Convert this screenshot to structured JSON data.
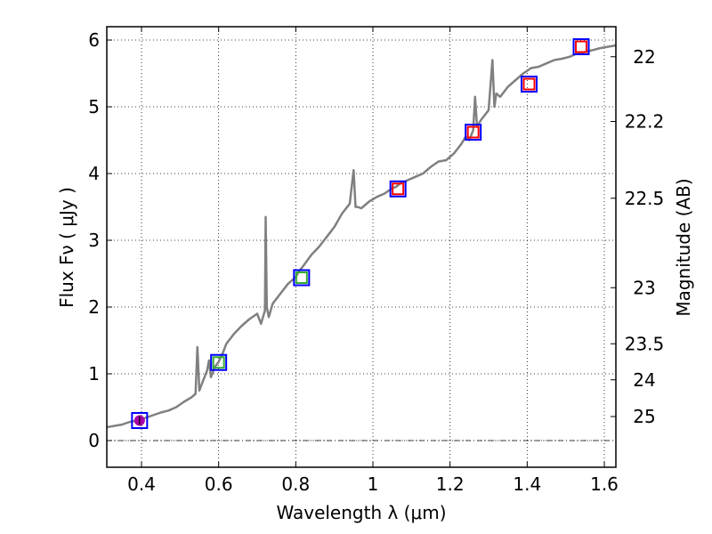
{
  "chart_data": {
    "type": "scatter",
    "xlabel": "Wavelength  λ (μm)",
    "ylabel": "Flux  Fν  ( μJy )",
    "ylabel_right": "Magnitude (AB)",
    "xlim": [
      0.31,
      1.63
    ],
    "ylim": [
      -0.4,
      6.2
    ],
    "grid": true,
    "x_ticks": [
      0.4,
      0.6,
      0.8,
      1.0,
      1.2,
      1.4,
      1.6
    ],
    "x_tick_labels": [
      "0.4",
      "0.6",
      "0.8",
      "1",
      "1.2",
      "1.4",
      "1.6"
    ],
    "y_ticks": [
      0,
      1,
      2,
      3,
      4,
      5,
      6
    ],
    "y_tick_labels": [
      "0",
      "1",
      "2",
      "3",
      "4",
      "5",
      "6"
    ],
    "right_ticks": [
      {
        "label": "22",
        "flux": 5.75
      },
      {
        "label": "22.2",
        "flux": 4.78
      },
      {
        "label": "22.5",
        "flux": 3.63
      },
      {
        "label": "23",
        "flux": 2.29
      },
      {
        "label": "23.5",
        "flux": 1.45
      },
      {
        "label": "24",
        "flux": 0.91
      },
      {
        "label": "25",
        "flux": 0.36
      }
    ],
    "series": [
      {
        "name": "SED model",
        "kind": "line",
        "color": "#808080",
        "x": [
          0.31,
          0.33,
          0.35,
          0.37,
          0.39,
          0.41,
          0.43,
          0.45,
          0.47,
          0.49,
          0.51,
          0.53,
          0.54,
          0.545,
          0.55,
          0.56,
          0.57,
          0.575,
          0.58,
          0.59,
          0.6,
          0.61,
          0.62,
          0.64,
          0.66,
          0.68,
          0.7,
          0.71,
          0.72,
          0.722,
          0.725,
          0.73,
          0.74,
          0.76,
          0.78,
          0.8,
          0.81,
          0.82,
          0.84,
          0.86,
          0.88,
          0.9,
          0.92,
          0.94,
          0.95,
          0.955,
          0.96,
          0.97,
          0.99,
          1.01,
          1.03,
          1.05,
          1.06,
          1.07,
          1.09,
          1.11,
          1.13,
          1.15,
          1.17,
          1.19,
          1.21,
          1.23,
          1.24,
          1.25,
          1.26,
          1.265,
          1.27,
          1.28,
          1.3,
          1.31,
          1.315,
          1.32,
          1.33,
          1.35,
          1.37,
          1.39,
          1.41,
          1.43,
          1.45,
          1.47,
          1.49,
          1.51,
          1.53,
          1.55,
          1.57,
          1.59,
          1.61,
          1.63
        ],
        "y": [
          0.2,
          0.22,
          0.24,
          0.28,
          0.3,
          0.34,
          0.38,
          0.42,
          0.45,
          0.5,
          0.58,
          0.65,
          0.7,
          1.4,
          0.75,
          0.9,
          1.05,
          1.2,
          0.95,
          1.1,
          1.18,
          1.3,
          1.45,
          1.6,
          1.72,
          1.82,
          1.9,
          1.75,
          1.95,
          3.35,
          2.0,
          1.85,
          2.05,
          2.2,
          2.35,
          2.45,
          2.55,
          2.62,
          2.78,
          2.9,
          3.05,
          3.2,
          3.4,
          3.55,
          4.05,
          3.5,
          3.5,
          3.48,
          3.58,
          3.65,
          3.7,
          3.78,
          3.8,
          3.85,
          3.9,
          3.95,
          4.0,
          4.1,
          4.18,
          4.2,
          4.3,
          4.45,
          4.55,
          4.5,
          4.65,
          5.15,
          4.7,
          4.8,
          4.95,
          5.7,
          5.0,
          5.2,
          5.15,
          5.3,
          5.4,
          5.5,
          5.58,
          5.6,
          5.65,
          5.7,
          5.72,
          5.75,
          5.8,
          5.82,
          5.85,
          5.88,
          5.9,
          5.92
        ]
      },
      {
        "name": "Observed (blue squares)",
        "kind": "square",
        "color": "#0000ff",
        "x": [
          0.395,
          0.6,
          0.815,
          1.065,
          1.26,
          1.405,
          1.54
        ],
        "y": [
          0.3,
          1.17,
          2.44,
          3.77,
          4.62,
          5.34,
          5.9
        ]
      },
      {
        "name": "Model photometry (red squares)",
        "kind": "square",
        "color": "#ff0000",
        "x": [
          1.065,
          1.26,
          1.405,
          1.54
        ],
        "y": [
          3.77,
          4.62,
          5.34,
          5.9
        ]
      },
      {
        "name": "Model photometry (green squares)",
        "kind": "square",
        "color": "#33aa33",
        "x": [
          0.6,
          0.815
        ],
        "y": [
          1.17,
          2.44
        ]
      },
      {
        "name": "Model photometry (magenta circle)",
        "kind": "circle",
        "color": "#aa00aa",
        "x": [
          0.395
        ],
        "y": [
          0.3
        ]
      }
    ]
  }
}
